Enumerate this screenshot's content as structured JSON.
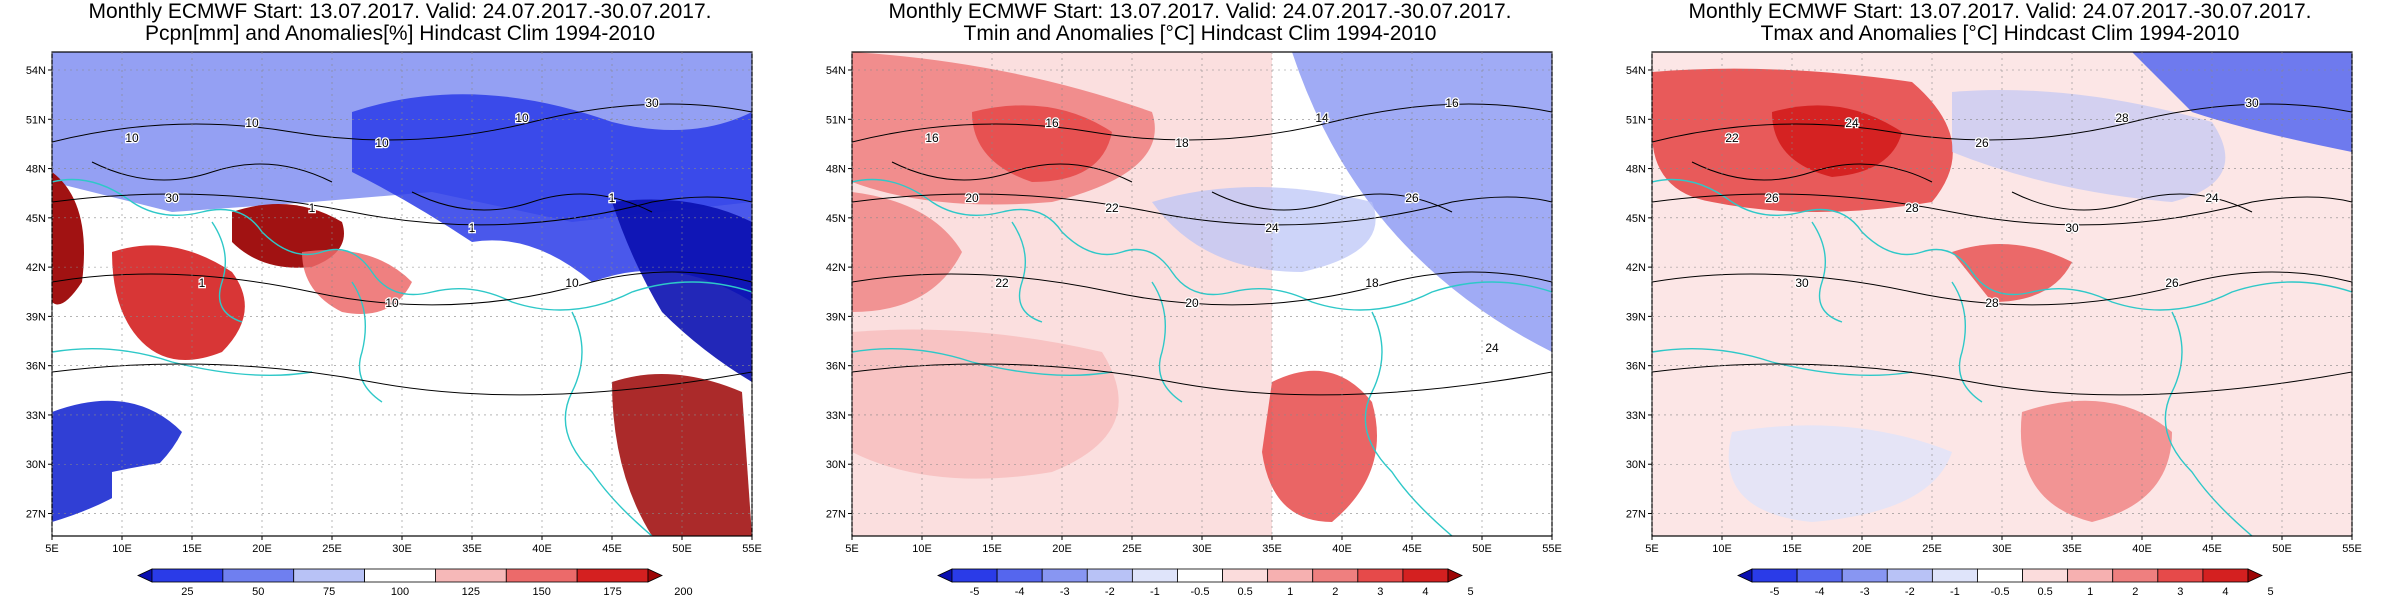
{
  "panels": [
    {
      "title_line1": "Monthly ECMWF Start: 13.07.2017. Valid: 24.07.2017.-30.07.2017.",
      "title_line2": "Pcpn[mm] and Anomalies[%] Hindcast Clim 1994-2010",
      "colorbar": {
        "labels": [
          "25",
          "50",
          "75",
          "100",
          "125",
          "150",
          "175",
          "200"
        ],
        "colors": [
          "#0a0fb0",
          "#2a3be8",
          "#6f7ff0",
          "#b8c2f6",
          "#ffffff",
          "#f6b8b8",
          "#ec6a6a",
          "#d42020",
          "#9c0505"
        ]
      },
      "contour_labels": [
        "10",
        "10",
        "10",
        "10",
        "30",
        "30",
        "1",
        "1",
        "1",
        "1",
        "10",
        "10"
      ]
    },
    {
      "title_line1": "Monthly ECMWF Start: 13.07.2017. Valid: 24.07.2017.-30.07.2017.",
      "title_line2": "Tmin and Anomalies [°C] Hindcast Clim 1994-2010",
      "colorbar": {
        "labels": [
          "-5",
          "-4",
          "-3",
          "-2",
          "-1",
          "-0.5",
          "0.5",
          "1",
          "2",
          "3",
          "4",
          "5"
        ],
        "colors": [
          "#0a0fb0",
          "#2a3be8",
          "#5566ee",
          "#8896f2",
          "#b8c2f6",
          "#dfe4fa",
          "#ffffff",
          "#fbdcdc",
          "#f6b0b0",
          "#ef7f7f",
          "#e64a4a",
          "#d42020",
          "#9c0505"
        ]
      },
      "contour_labels": [
        "16",
        "16",
        "18",
        "14",
        "16",
        "20",
        "22",
        "24",
        "26",
        "22",
        "20",
        "18",
        "24"
      ]
    },
    {
      "title_line1": "Monthly ECMWF Start: 13.07.2017. Valid: 24.07.2017.-30.07.2017.",
      "title_line2": "Tmax and Anomalies [°C] Hindcast Clim 1994-2010",
      "colorbar": {
        "labels": [
          "-5",
          "-4",
          "-3",
          "-2",
          "-1",
          "-0.5",
          "0.5",
          "1",
          "2",
          "3",
          "4",
          "5"
        ],
        "colors": [
          "#0a0fb0",
          "#2a3be8",
          "#5566ee",
          "#8896f2",
          "#b8c2f6",
          "#dfe4fa",
          "#ffffff",
          "#fbdcdc",
          "#f6b0b0",
          "#ef7f7f",
          "#e64a4a",
          "#d42020",
          "#9c0505"
        ]
      },
      "contour_labels": [
        "22",
        "24",
        "26",
        "28",
        "30",
        "26",
        "28",
        "30",
        "24",
        "30",
        "28",
        "26"
      ]
    }
  ],
  "axes": {
    "lat_labels": [
      "54N",
      "51N",
      "48N",
      "45N",
      "42N",
      "39N",
      "36N",
      "33N",
      "30N",
      "27N"
    ],
    "lon_labels": [
      "5E",
      "10E",
      "15E",
      "20E",
      "25E",
      "30E",
      "35E",
      "40E",
      "45E",
      "50E",
      "55E"
    ]
  }
}
